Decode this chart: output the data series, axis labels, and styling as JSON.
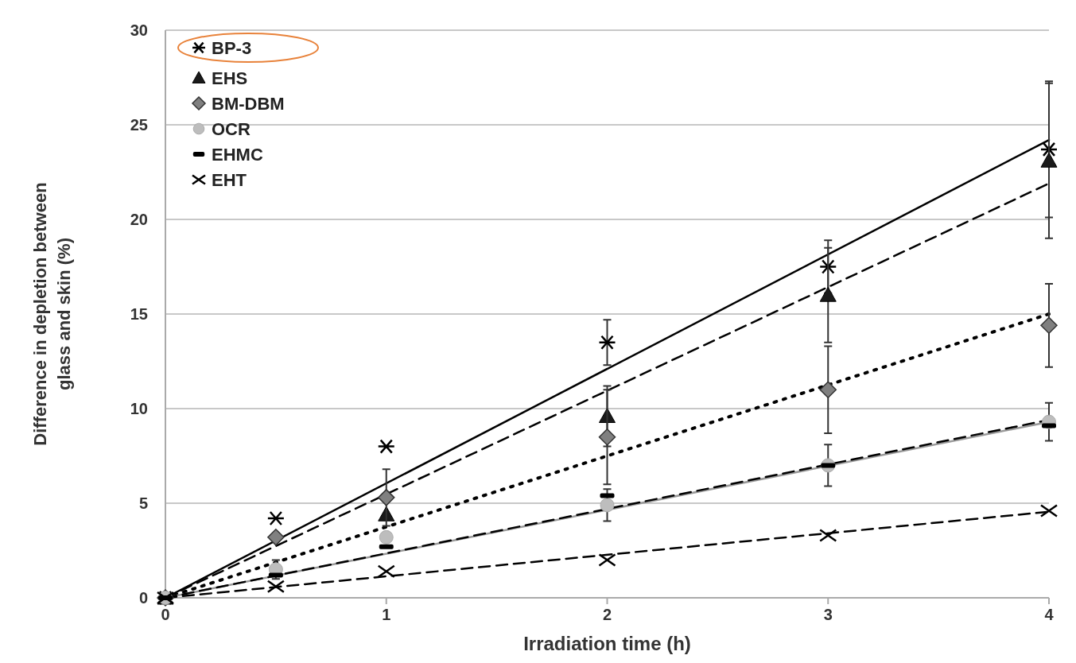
{
  "chart_data": {
    "type": "scatter",
    "xlabel": "Irradiation time (h)",
    "ylabel": "Difference in depletion between glass and skin (%)",
    "xlim": [
      0,
      4
    ],
    "ylim": [
      0,
      30
    ],
    "xticks": [
      0,
      1,
      2,
      3,
      4
    ],
    "yticks": [
      0,
      5,
      10,
      15,
      20,
      25,
      30
    ],
    "grid": "y",
    "legend": "top left",
    "series": [
      {
        "name": "BP-3",
        "marker": "cross",
        "color": "#000000",
        "x": [
          0,
          0.5,
          1,
          2,
          3,
          4
        ],
        "values": [
          0,
          4.2,
          8.0,
          13.5,
          17.5,
          23.7
        ],
        "errors": [
          null,
          null,
          null,
          1.2,
          1.4,
          3.6
        ]
      },
      {
        "name": "EHS",
        "marker": "triangle",
        "color": "#1a1a1a",
        "x": [
          0,
          1,
          2,
          3,
          4
        ],
        "values": [
          0,
          4.4,
          9.6,
          16.0,
          23.1
        ],
        "errors": [
          null,
          null,
          1.6,
          2.5,
          4.1
        ]
      },
      {
        "name": "BM-DBM",
        "marker": "diamond",
        "color": "#808080",
        "x": [
          0,
          0.5,
          1,
          2,
          3,
          4
        ],
        "values": [
          0,
          3.2,
          5.3,
          8.5,
          11.0,
          14.4
        ],
        "errors": [
          null,
          null,
          1.5,
          2.5,
          2.3,
          2.2
        ]
      },
      {
        "name": "OCR",
        "marker": "circle",
        "color": "#bdbdbd",
        "x": [
          0,
          0.5,
          1,
          2,
          3,
          4
        ],
        "values": [
          0,
          1.5,
          3.2,
          4.9,
          7.0,
          9.3
        ],
        "errors": [
          null,
          0.5,
          null,
          0.85,
          1.1,
          1.0
        ]
      },
      {
        "name": "EHMC",
        "marker": "square",
        "color": "#000000",
        "x": [
          0,
          0.5,
          1,
          2,
          3,
          4
        ],
        "values": [
          0,
          1.2,
          2.7,
          5.4,
          7.0,
          9.1
        ],
        "errors": [
          null,
          null,
          null,
          null,
          null,
          null
        ]
      },
      {
        "name": "EHT",
        "marker": "x",
        "color": "#000000",
        "x": [
          0,
          0.5,
          1,
          2,
          3,
          4
        ],
        "values": [
          0,
          0.6,
          1.4,
          2.0,
          3.3,
          4.6
        ]
      },
      {
        "type": "line",
        "color": "#000000",
        "line_style": "solid",
        "x": [
          0,
          4
        ],
        "values": [
          0,
          24.2
        ]
      },
      {
        "type": "line",
        "color": "#000000",
        "line_style": "dashed",
        "x": [
          0,
          4
        ],
        "values": [
          0,
          21.9
        ]
      },
      {
        "type": "line",
        "color": "#000000",
        "line_style": "dotted",
        "x": [
          0,
          4
        ],
        "values": [
          0,
          15.0
        ]
      },
      {
        "type": "line",
        "color": "#999999",
        "line_style": "solid",
        "x": [
          0,
          4
        ],
        "values": [
          0,
          9.3
        ]
      },
      {
        "type": "line",
        "color": "#000000",
        "line_style": "dashed",
        "x": [
          0,
          4
        ],
        "values": [
          0,
          9.4
        ]
      },
      {
        "type": "line",
        "color": "#000000",
        "line_style": "dashed",
        "x": [
          0,
          4
        ],
        "values": [
          0,
          4.55
        ]
      }
    ]
  }
}
